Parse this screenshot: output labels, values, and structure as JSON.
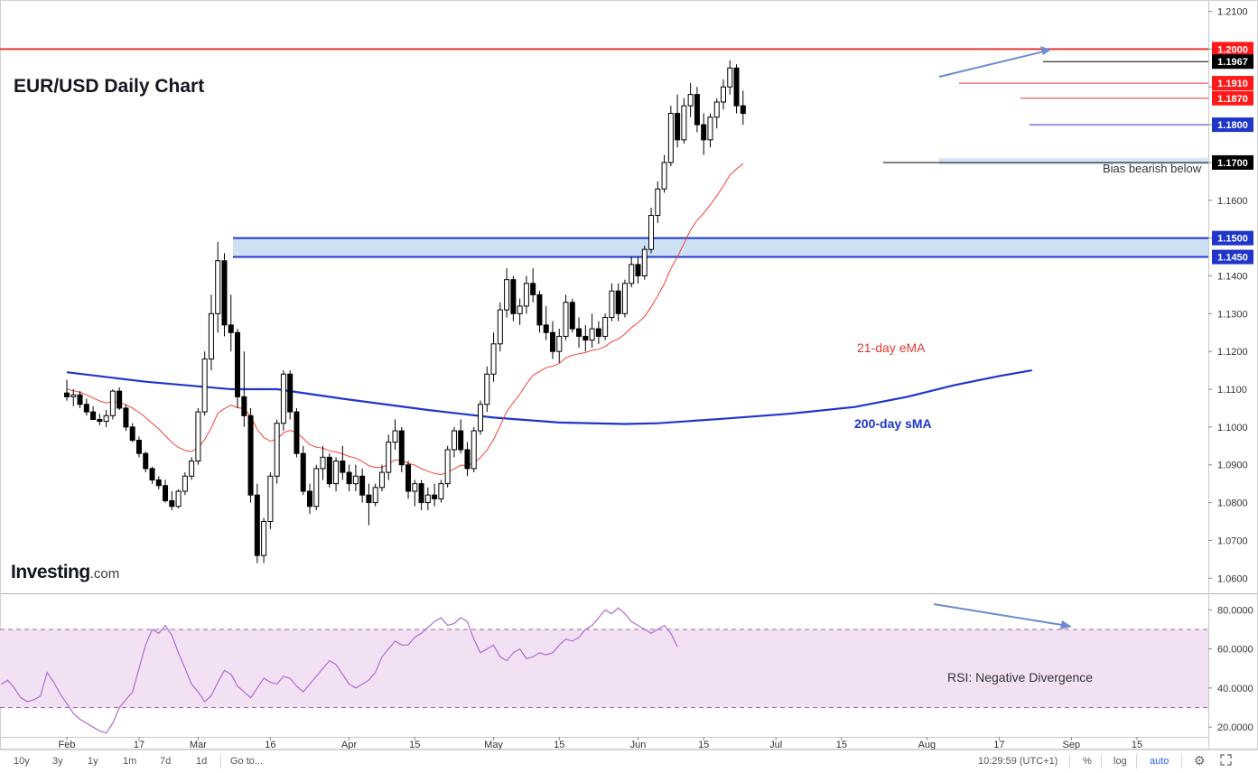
{
  "chart_title": "EUR/USD Daily Chart",
  "logo": {
    "main": "Investing",
    "suffix": ".com"
  },
  "colors": {
    "up_candle": "#ffffff",
    "down_candle": "#000000",
    "ema": "#f44336",
    "sma": "#1f36c9",
    "rsi": "#b06cd0",
    "resistance": "#e53935",
    "support": "#1f36c9",
    "zone": "#c6dcf2"
  },
  "chart_data": [
    {
      "type": "candlestick",
      "title": "EUR/USD Daily Chart",
      "ylim": [
        1.056,
        1.213
      ],
      "x_ticks": [
        {
          "label": "Feb",
          "x": 0
        },
        {
          "label": "17",
          "x": 11
        },
        {
          "label": "Mar",
          "x": 20
        },
        {
          "label": "16",
          "x": 31
        },
        {
          "label": "Apr",
          "x": 43
        },
        {
          "label": "15",
          "x": 53
        },
        {
          "label": "May",
          "x": 65
        },
        {
          "label": "15",
          "x": 75
        },
        {
          "label": "Jun",
          "x": 87
        },
        {
          "label": "15",
          "x": 97
        },
        {
          "label": "Jul",
          "x": 108
        },
        {
          "label": "15",
          "x": 118
        },
        {
          "label": "Aug",
          "x": 131
        },
        {
          "label": "17",
          "x": 142
        },
        {
          "label": "Sep",
          "x": 153
        },
        {
          "label": "15",
          "x": 163
        }
      ],
      "y_ticks": [
        1.06,
        1.07,
        1.08,
        1.09,
        1.1,
        1.11,
        1.12,
        1.13,
        1.14,
        1.15,
        1.16,
        1.17,
        1.18,
        1.19,
        1.2,
        1.21
      ],
      "candles": [
        [
          1.109,
          1.1125,
          1.107,
          1.108
        ],
        [
          1.108,
          1.11,
          1.1055,
          1.1085
        ],
        [
          1.1085,
          1.1095,
          1.105,
          1.106
        ],
        [
          1.106,
          1.1075,
          1.103,
          1.104
        ],
        [
          1.104,
          1.1055,
          1.102,
          1.102
        ],
        [
          1.102,
          1.1035,
          1.1005,
          1.1015
        ],
        [
          1.1015,
          1.1045,
          1.1,
          1.103
        ],
        [
          1.103,
          1.11,
          1.102,
          1.1095
        ],
        [
          1.1095,
          1.1105,
          1.1045,
          1.105
        ],
        [
          1.105,
          1.106,
          1.099,
          1.1
        ],
        [
          1.1,
          1.101,
          1.096,
          1.0965
        ],
        [
          1.0965,
          1.0975,
          1.092,
          1.093
        ],
        [
          1.093,
          1.0935,
          1.088,
          1.089
        ],
        [
          1.089,
          1.0895,
          1.085,
          1.086
        ],
        [
          1.086,
          1.087,
          1.0835,
          1.0845
        ],
        [
          1.0845,
          1.086,
          1.08,
          1.0805
        ],
        [
          1.0805,
          1.083,
          1.078,
          1.079
        ],
        [
          1.079,
          1.0835,
          1.0785,
          1.083
        ],
        [
          1.083,
          1.088,
          1.082,
          1.087
        ],
        [
          1.087,
          1.092,
          1.086,
          1.091
        ],
        [
          1.091,
          1.105,
          1.09,
          1.104
        ],
        [
          1.104,
          1.12,
          1.103,
          1.118
        ],
        [
          1.118,
          1.135,
          1.115,
          1.13
        ],
        [
          1.13,
          1.149,
          1.125,
          1.144
        ],
        [
          1.144,
          1.146,
          1.124,
          1.127
        ],
        [
          1.127,
          1.135,
          1.12,
          1.125
        ],
        [
          1.125,
          1.126,
          1.105,
          1.108
        ],
        [
          1.108,
          1.12,
          1.1,
          1.103
        ],
        [
          1.103,
          1.105,
          1.08,
          1.082
        ],
        [
          1.082,
          1.085,
          1.064,
          1.066
        ],
        [
          1.066,
          1.076,
          1.064,
          1.075
        ],
        [
          1.075,
          1.088,
          1.073,
          1.087
        ],
        [
          1.087,
          1.102,
          1.085,
          1.101
        ],
        [
          1.101,
          1.115,
          1.099,
          1.114
        ],
        [
          1.114,
          1.115,
          1.102,
          1.104
        ],
        [
          1.104,
          1.105,
          1.092,
          1.093
        ],
        [
          1.093,
          1.095,
          1.082,
          1.083
        ],
        [
          1.083,
          1.085,
          1.077,
          1.079
        ],
        [
          1.079,
          1.09,
          1.078,
          1.089
        ],
        [
          1.089,
          1.095,
          1.086,
          1.092
        ],
        [
          1.092,
          1.093,
          1.084,
          1.085
        ],
        [
          1.085,
          1.092,
          1.083,
          1.091
        ],
        [
          1.091,
          1.095,
          1.086,
          1.088
        ],
        [
          1.088,
          1.09,
          1.083,
          1.085
        ],
        [
          1.085,
          1.09,
          1.083,
          1.087
        ],
        [
          1.087,
          1.089,
          1.08,
          1.082
        ],
        [
          1.082,
          1.085,
          1.074,
          1.08
        ],
        [
          1.08,
          1.085,
          1.079,
          1.084
        ],
        [
          1.084,
          1.09,
          1.083,
          1.088
        ],
        [
          1.088,
          1.098,
          1.086,
          1.096
        ],
        [
          1.096,
          1.102,
          1.094,
          1.099
        ],
        [
          1.099,
          1.1,
          1.088,
          1.09
        ],
        [
          1.09,
          1.091,
          1.081,
          1.083
        ],
        [
          1.083,
          1.086,
          1.079,
          1.085
        ],
        [
          1.085,
          1.086,
          1.078,
          1.08
        ],
        [
          1.08,
          1.084,
          1.078,
          1.082
        ],
        [
          1.082,
          1.085,
          1.079,
          1.081
        ],
        [
          1.081,
          1.086,
          1.08,
          1.085
        ],
        [
          1.085,
          1.095,
          1.084,
          1.094
        ],
        [
          1.094,
          1.1,
          1.092,
          1.099
        ],
        [
          1.099,
          1.102,
          1.093,
          1.094
        ],
        [
          1.094,
          1.096,
          1.087,
          1.089
        ],
        [
          1.089,
          1.1,
          1.088,
          1.099
        ],
        [
          1.099,
          1.107,
          1.098,
          1.106
        ],
        [
          1.106,
          1.116,
          1.104,
          1.114
        ],
        [
          1.114,
          1.125,
          1.112,
          1.122
        ],
        [
          1.122,
          1.133,
          1.12,
          1.131
        ],
        [
          1.131,
          1.142,
          1.129,
          1.139
        ],
        [
          1.139,
          1.14,
          1.128,
          1.13
        ],
        [
          1.13,
          1.134,
          1.127,
          1.132
        ],
        [
          1.132,
          1.14,
          1.13,
          1.138
        ],
        [
          1.138,
          1.142,
          1.133,
          1.135
        ],
        [
          1.135,
          1.136,
          1.125,
          1.127
        ],
        [
          1.127,
          1.132,
          1.123,
          1.125
        ],
        [
          1.125,
          1.128,
          1.118,
          1.12
        ],
        [
          1.12,
          1.126,
          1.117,
          1.124
        ],
        [
          1.124,
          1.135,
          1.123,
          1.133
        ],
        [
          1.133,
          1.134,
          1.125,
          1.126
        ],
        [
          1.126,
          1.129,
          1.121,
          1.124
        ],
        [
          1.124,
          1.127,
          1.12,
          1.123
        ],
        [
          1.123,
          1.13,
          1.121,
          1.126
        ],
        [
          1.126,
          1.128,
          1.122,
          1.124
        ],
        [
          1.124,
          1.13,
          1.123,
          1.129
        ],
        [
          1.129,
          1.138,
          1.128,
          1.136
        ],
        [
          1.136,
          1.138,
          1.128,
          1.13
        ],
        [
          1.13,
          1.139,
          1.129,
          1.138
        ],
        [
          1.138,
          1.145,
          1.137,
          1.143
        ],
        [
          1.143,
          1.145,
          1.138,
          1.14
        ],
        [
          1.14,
          1.148,
          1.139,
          1.147
        ],
        [
          1.147,
          1.158,
          1.146,
          1.156
        ],
        [
          1.156,
          1.165,
          1.154,
          1.163
        ],
        [
          1.163,
          1.172,
          1.162,
          1.17
        ],
        [
          1.17,
          1.185,
          1.169,
          1.183
        ],
        [
          1.183,
          1.188,
          1.174,
          1.176
        ],
        [
          1.176,
          1.187,
          1.175,
          1.185
        ],
        [
          1.185,
          1.191,
          1.182,
          1.188
        ],
        [
          1.188,
          1.19,
          1.178,
          1.18
        ],
        [
          1.18,
          1.183,
          1.172,
          1.176
        ],
        [
          1.176,
          1.183,
          1.174,
          1.182
        ],
        [
          1.182,
          1.187,
          1.179,
          1.186
        ],
        [
          1.186,
          1.192,
          1.184,
          1.19
        ],
        [
          1.19,
          1.197,
          1.188,
          1.195
        ],
        [
          1.195,
          1.196,
          1.183,
          1.185
        ],
        [
          1.185,
          1.189,
          1.18,
          1.183
        ]
      ],
      "ema_21": [
        1.11,
        1.1096,
        1.1092,
        1.1085,
        1.1077,
        1.1069,
        1.1064,
        1.1067,
        1.1065,
        1.1059,
        1.105,
        1.1039,
        1.1025,
        1.101,
        1.0995,
        1.0977,
        1.0959,
        1.0946,
        1.0938,
        1.0935,
        1.0945,
        1.0967,
        1.0997,
        1.1037,
        1.1049,
        1.1058,
        1.1051,
        1.1049,
        1.1028,
        1.0994,
        1.0972,
        1.0963,
        1.0967,
        1.0985,
        1.0991,
        1.0985,
        1.097,
        1.0953,
        1.0947,
        1.0944,
        1.0937,
        1.0934,
        1.0929,
        1.0922,
        1.0918,
        1.0909,
        1.0898,
        1.0893,
        1.0893,
        1.0902,
        1.0913,
        1.0912,
        1.0904,
        1.0899,
        1.089,
        1.0883,
        1.0877,
        1.0874,
        1.088,
        1.0889,
        1.0899,
        1.0898,
        1.0905,
        1.0919,
        1.0939,
        1.0967,
        1.1003,
        1.1041,
        1.1065,
        1.1087,
        1.1114,
        1.1137,
        1.1147,
        1.1157,
        1.1161,
        1.1168,
        1.1183,
        1.119,
        1.1194,
        1.1197,
        1.1203,
        1.1206,
        1.1213,
        1.1226,
        1.1233,
        1.1246,
        1.1263,
        1.1276,
        1.1293,
        1.1318,
        1.1347,
        1.1379,
        1.1419,
        1.145,
        1.1486,
        1.1521,
        1.1547,
        1.1566,
        1.1588,
        1.1612,
        1.1638,
        1.1667,
        1.1683,
        1.1697
      ],
      "sma_200": [
        [
          0,
          1.1145
        ],
        [
          12,
          1.112
        ],
        [
          25,
          1.11
        ],
        [
          32,
          1.11
        ],
        [
          42,
          1.1075
        ],
        [
          55,
          1.1045
        ],
        [
          65,
          1.1025
        ],
        [
          75,
          1.1012
        ],
        [
          85,
          1.1008
        ],
        [
          90,
          1.101
        ],
        [
          100,
          1.1022
        ],
        [
          110,
          1.1035
        ],
        [
          120,
          1.1053
        ],
        [
          128,
          1.108
        ],
        [
          135,
          1.111
        ],
        [
          142,
          1.1135
        ],
        [
          147,
          1.115
        ]
      ],
      "price_labels": [
        {
          "value": 1.2,
          "label": "1.2000",
          "style": "resistance"
        },
        {
          "value": 1.1967,
          "label": "1.1967",
          "style": "level"
        },
        {
          "value": 1.191,
          "label": "1.1910",
          "style": "resistance"
        },
        {
          "value": 1.187,
          "label": "1.1870",
          "style": "resistance"
        },
        {
          "value": 1.18,
          "label": "1.1800",
          "style": "support"
        },
        {
          "value": 1.17,
          "label": "1.1700",
          "style": "level"
        },
        {
          "value": 1.15,
          "label": "1.1500",
          "style": "support"
        },
        {
          "value": 1.145,
          "label": "1.1450",
          "style": "support"
        }
      ],
      "zones": [
        {
          "from": 1.145,
          "to": 1.15
        },
        {
          "from": 1.1695,
          "to": 1.1712
        }
      ],
      "series": [
        {
          "name": "21-day eMA",
          "color": "#f44336"
        },
        {
          "name": "200-day sMA",
          "color": "#1f36c9"
        }
      ],
      "annotations": [
        "Bias bearish below",
        "21-day eMA",
        "200-day sMA"
      ]
    },
    {
      "type": "line",
      "name": "RSI",
      "ylim": [
        15,
        88
      ],
      "y_ticks": [
        20,
        40,
        60,
        80
      ],
      "y_tick_labels": [
        "20.0000",
        "40.0000",
        "60.0000",
        "80.0000"
      ],
      "overbought": 70,
      "oversold": 30,
      "values": [
        42,
        44,
        40,
        35,
        33,
        34,
        36,
        48,
        43,
        37,
        32,
        27,
        24,
        22,
        20,
        18,
        17,
        22,
        30,
        34,
        38,
        50,
        62,
        70,
        68,
        72,
        67,
        58,
        50,
        42,
        38,
        33,
        36,
        43,
        49,
        47,
        41,
        38,
        35,
        40,
        45,
        43,
        42,
        46,
        45,
        41,
        38,
        42,
        46,
        50,
        54,
        52,
        47,
        42,
        40,
        42,
        44,
        48,
        56,
        60,
        64,
        62,
        62,
        66,
        68,
        71,
        74,
        76,
        72,
        73,
        76,
        74,
        65,
        58,
        60,
        62,
        56,
        54,
        58,
        60,
        55,
        56,
        58,
        57,
        58,
        62,
        65,
        64,
        66,
        70,
        72,
        76,
        80,
        78,
        81,
        78,
        74,
        72,
        70,
        68,
        70,
        72,
        68,
        61
      ],
      "annotation": "RSI: Negative Divergence"
    }
  ],
  "toolbar": {
    "ranges": [
      "10y",
      "3y",
      "1y",
      "1m",
      "7d",
      "1d"
    ],
    "goto": "Go to...",
    "time": "10:29:59 (UTC+1)",
    "percent": "%",
    "log": "log",
    "auto": "auto"
  }
}
